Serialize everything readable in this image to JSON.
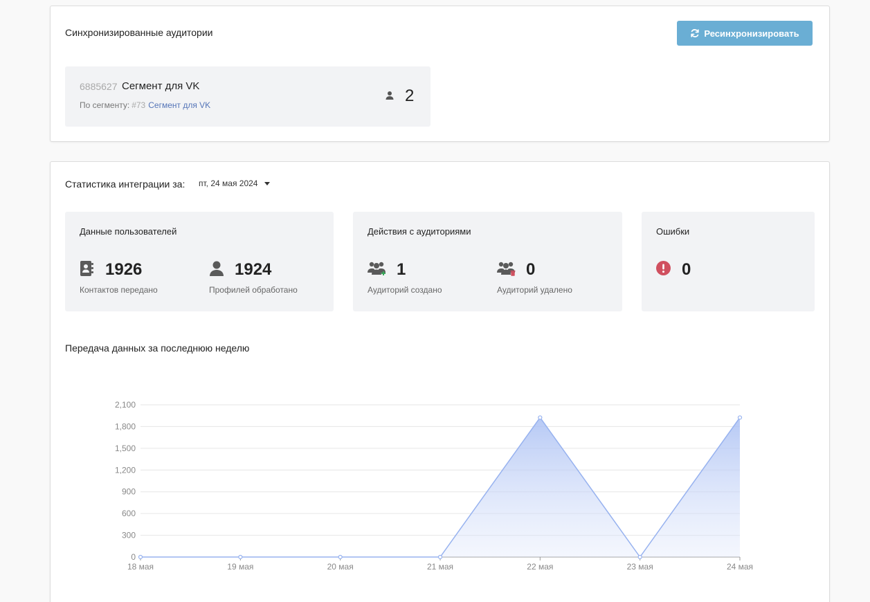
{
  "sync": {
    "title": "Синхронизированные аудитории",
    "resync_label": "Ресинхронизировать",
    "segment": {
      "id": "6885627",
      "name": "Сегмент для VK",
      "sub_prefix": "По сегменту:",
      "sub_number": "#73",
      "sub_link": "Сегмент для VK",
      "count": "2"
    }
  },
  "stats": {
    "period_label": "Статистика интеграции за:",
    "period_value": "пт, 24 мая 2024",
    "users": {
      "title": "Данные пользователей",
      "contacts_value": "1926",
      "contacts_label": "Контактов передано",
      "profiles_value": "1924",
      "profiles_label": "Профилей обработано"
    },
    "audiences": {
      "title": "Действия с аудиториями",
      "created_value": "1",
      "created_label": "Аудиторий создано",
      "deleted_value": "0",
      "deleted_label": "Аудиторий удалено"
    },
    "errors": {
      "title": "Ошибки",
      "value": "0"
    },
    "chart_title": "Передача данных за последнюю неделю"
  },
  "colors": {
    "accent_button": "#6aaed4",
    "link": "#5575b8",
    "error": "#d0505f",
    "chart_line": "#97b2ef",
    "card_bg": "#f2f3f5"
  },
  "chart_data": {
    "type": "area",
    "categories": [
      "18 мая",
      "19 мая",
      "20 мая",
      "21 мая",
      "22 мая",
      "23 мая",
      "24 мая"
    ],
    "values": [
      0,
      0,
      0,
      0,
      1924,
      0,
      1924
    ],
    "yticks": [
      "0",
      "300",
      "600",
      "900",
      "1,200",
      "1,500",
      "1,800",
      "2,100"
    ],
    "ylim": [
      0,
      2100
    ],
    "grid": true,
    "legend": "none"
  }
}
